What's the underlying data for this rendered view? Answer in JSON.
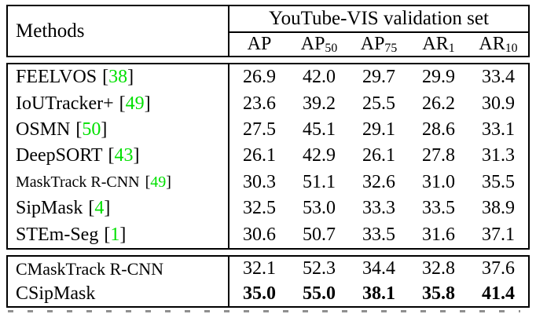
{
  "table": {
    "header": {
      "methods_label": "Methods",
      "group_title": "YouTube-VIS validation set",
      "columns": [
        {
          "label": "AP",
          "sub": ""
        },
        {
          "label": "AP",
          "sub": "50"
        },
        {
          "label": "AP",
          "sub": "75"
        },
        {
          "label": "AR",
          "sub": "1"
        },
        {
          "label": "AR",
          "sub": "10"
        }
      ]
    },
    "punct": {
      "lb": "[",
      "rb": "]"
    },
    "body_rows": [
      {
        "method": "FEELVOS",
        "cite": "38",
        "values": [
          "26.9",
          "42.0",
          "29.7",
          "29.9",
          "33.4"
        ]
      },
      {
        "method": "IoUTracker+",
        "cite": "49",
        "values": [
          "23.6",
          "39.2",
          "25.5",
          "26.2",
          "30.9"
        ]
      },
      {
        "method": "OSMN",
        "cite": "50",
        "values": [
          "27.5",
          "45.1",
          "29.1",
          "28.6",
          "33.1"
        ]
      },
      {
        "method": "DeepSORT",
        "cite": "43",
        "values": [
          "26.1",
          "42.9",
          "26.1",
          "27.8",
          "31.3"
        ]
      },
      {
        "method": "MaskTrack R-CNN",
        "cite": "49",
        "values": [
          "30.3",
          "51.1",
          "32.6",
          "31.0",
          "35.5"
        ]
      },
      {
        "method": "SipMask",
        "cite": "4",
        "values": [
          "32.5",
          "53.0",
          "33.3",
          "33.5",
          "38.9"
        ]
      },
      {
        "method": "STEm-Seg",
        "cite": "1",
        "values": [
          "30.6",
          "50.7",
          "33.5",
          "31.6",
          "37.1"
        ]
      }
    ],
    "footer_rows": [
      {
        "method": "CMaskTrack R-CNN",
        "values": [
          "32.1",
          "52.3",
          "34.4",
          "32.8",
          "37.6"
        ]
      },
      {
        "method": "CSipMask",
        "values": [
          "35.0",
          "55.0",
          "38.1",
          "35.8",
          "41.4"
        ]
      }
    ]
  },
  "colors": {
    "citation_green": "#00E000",
    "border": "#000000",
    "text": "#000000",
    "background": "#ffffff"
  }
}
